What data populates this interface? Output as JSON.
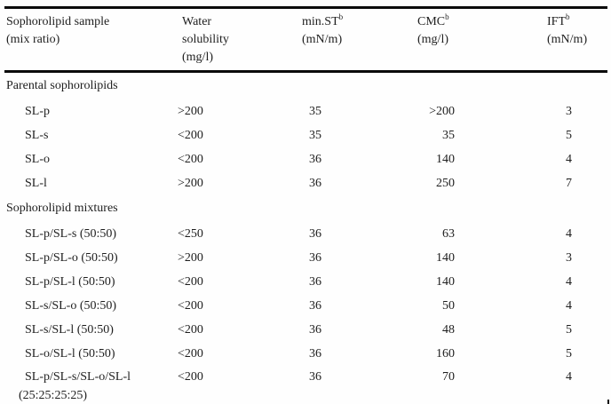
{
  "table": {
    "columns": [
      {
        "lines": [
          "Sophorolipid sample",
          "(mix ratio)"
        ],
        "sup": ""
      },
      {
        "lines": [
          "Water",
          "solubility",
          "(mg/l)"
        ],
        "sup": ""
      },
      {
        "lines": [
          "min.ST",
          "(mN/m)"
        ],
        "sup": "b"
      },
      {
        "lines": [
          "CMC",
          "(mg/l)"
        ],
        "sup": "b"
      },
      {
        "lines": [
          "IFT",
          "(mN/m)"
        ],
        "sup": "b"
      }
    ],
    "rows": [
      {
        "type": "section",
        "label": "Parental sophorolipids"
      },
      {
        "type": "data",
        "sample": "SL-p",
        "water": ">200",
        "min_st": "35",
        "cmc": ">200",
        "ift": "3"
      },
      {
        "type": "data",
        "sample": "SL-s",
        "water": "<200",
        "min_st": "35",
        "cmc": "35",
        "ift": "5"
      },
      {
        "type": "data",
        "sample": "SL-o",
        "water": "<200",
        "min_st": "36",
        "cmc": "140",
        "ift": "4"
      },
      {
        "type": "data",
        "sample": "SL-l",
        "water": ">200",
        "min_st": "36",
        "cmc": "250",
        "ift": "7"
      },
      {
        "type": "section",
        "label": "Sophorolipid mixtures"
      },
      {
        "type": "data",
        "sample": "SL-p/SL-s (50:50)",
        "water": "<250",
        "min_st": "36",
        "cmc": "63",
        "ift": "4"
      },
      {
        "type": "data",
        "sample": "SL-p/SL-o (50:50)",
        "water": ">200",
        "min_st": "36",
        "cmc": "140",
        "ift": "3"
      },
      {
        "type": "data",
        "sample": "SL-p/SL-l (50:50)",
        "water": "<200",
        "min_st": "36",
        "cmc": "140",
        "ift": "4"
      },
      {
        "type": "data",
        "sample": "SL-s/SL-o (50:50)",
        "water": "<200",
        "min_st": "36",
        "cmc": "50",
        "ift": "4"
      },
      {
        "type": "data",
        "sample": "SL-s/SL-l (50:50)",
        "water": "<200",
        "min_st": "36",
        "cmc": "48",
        "ift": "5"
      },
      {
        "type": "data",
        "sample": "SL-o/SL-l (50:50)",
        "water": "<200",
        "min_st": "36",
        "cmc": "160",
        "ift": "5"
      },
      {
        "type": "data",
        "sample": "SL-p/SL-s/SL-o/SL-l",
        "sample_line2": "(25:25:25:25)",
        "water": "<200",
        "min_st": "36",
        "cmc": "70",
        "ift": "4"
      }
    ]
  },
  "colors": {
    "text": "#1e1e1e",
    "rule": "#0b0b0b",
    "background": "#fefefe"
  }
}
